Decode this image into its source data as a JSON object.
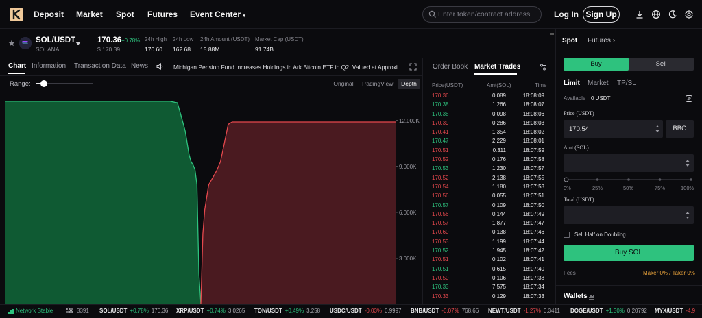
{
  "nav": {
    "links": [
      "Deposit",
      "Market",
      "Spot",
      "Futures",
      "Event Center"
    ],
    "search_placeholder": "Enter token/contract address",
    "login": "Log In",
    "signup": "Sign Up"
  },
  "ticker": {
    "pair": "SOL/USDT",
    "name": "SOLANA",
    "price": "170.36",
    "change": "+0.78%",
    "price_usd": "$ 170.39",
    "stats": [
      {
        "label": "24h High",
        "value": "170.60"
      },
      {
        "label": "24h Low",
        "value": "162.68"
      },
      {
        "label": "24h Amount (USDT)",
        "value": "15.88M"
      },
      {
        "label": "Market Cap (USDT)",
        "value": "91.74B"
      }
    ]
  },
  "chart_panel": {
    "tabs": [
      "Chart",
      "Information",
      "Transaction Data",
      "News"
    ],
    "news_headline": "Michigan Pension Fund Increases Holdings in Ark Bitcoin ETF in Q2, Valued at Approxi...",
    "range_label": "Range:",
    "range_value": 0.14,
    "views": [
      "Original",
      "TradingView",
      "Depth"
    ],
    "active_view": "Depth"
  },
  "chart_data": {
    "type": "area",
    "title": "",
    "x_min": 0,
    "x_max": 1,
    "ylim": [
      0,
      13600
    ],
    "y_ticks": [
      "3.000K",
      "6.000K",
      "9.000K",
      "12.000K"
    ],
    "y_tick_values": [
      3000,
      6000,
      9000,
      12000
    ],
    "grid": false,
    "series": [
      {
        "side": "bids",
        "color": "#2ec27e",
        "fill": "#0f5a33",
        "x": [
          0.0,
          0.42,
          0.44,
          0.45,
          0.46,
          0.47,
          0.475,
          0.48,
          0.485,
          0.49,
          0.495,
          0.5
        ],
        "y": [
          13250,
          13250,
          13150,
          12250,
          11300,
          9750,
          9300,
          9100,
          8800,
          7800,
          2000,
          0
        ]
      },
      {
        "side": "asks",
        "color": "#e5484d",
        "fill": "#4a1a20",
        "x": [
          0.5,
          0.505,
          0.51,
          0.52,
          0.54,
          0.55,
          0.56,
          0.57,
          0.58,
          1.0
        ],
        "y": [
          0,
          4600,
          6200,
          7800,
          8700,
          9300,
          10500,
          11750,
          11900,
          11900
        ]
      }
    ]
  },
  "market": {
    "tabs": [
      "Order Book",
      "Market Trades"
    ],
    "headers": [
      "Price(USDT)",
      "Amt(SOL)",
      "Time"
    ],
    "trades": [
      {
        "price": "170.36",
        "amt": "0.089",
        "time": "18:08:09",
        "side": "down"
      },
      {
        "price": "170.38",
        "amt": "1.266",
        "time": "18:08:07",
        "side": "up"
      },
      {
        "price": "170.38",
        "amt": "0.098",
        "time": "18:08:06",
        "side": "up"
      },
      {
        "price": "170.39",
        "amt": "0.286",
        "time": "18:08:03",
        "side": "down"
      },
      {
        "price": "170.41",
        "amt": "1.354",
        "time": "18:08:02",
        "side": "down"
      },
      {
        "price": "170.47",
        "amt": "2.229",
        "time": "18:08:01",
        "side": "up"
      },
      {
        "price": "170.51",
        "amt": "0.311",
        "time": "18:07:59",
        "side": "down"
      },
      {
        "price": "170.52",
        "amt": "0.176",
        "time": "18:07:58",
        "side": "down"
      },
      {
        "price": "170.53",
        "amt": "1.230",
        "time": "18:07:57",
        "side": "up"
      },
      {
        "price": "170.52",
        "amt": "2.138",
        "time": "18:07:55",
        "side": "down"
      },
      {
        "price": "170.54",
        "amt": "1.180",
        "time": "18:07:53",
        "side": "down"
      },
      {
        "price": "170.56",
        "amt": "0.055",
        "time": "18:07:51",
        "side": "down"
      },
      {
        "price": "170.57",
        "amt": "0.109",
        "time": "18:07:50",
        "side": "up"
      },
      {
        "price": "170.56",
        "amt": "0.144",
        "time": "18:07:49",
        "side": "down"
      },
      {
        "price": "170.57",
        "amt": "1.877",
        "time": "18:07:47",
        "side": "down"
      },
      {
        "price": "170.60",
        "amt": "0.138",
        "time": "18:07:46",
        "side": "down"
      },
      {
        "price": "170.53",
        "amt": "1.199",
        "time": "18:07:44",
        "side": "down"
      },
      {
        "price": "170.52",
        "amt": "1.945",
        "time": "18:07:42",
        "side": "up"
      },
      {
        "price": "170.51",
        "amt": "0.102",
        "time": "18:07:41",
        "side": "down"
      },
      {
        "price": "170.51",
        "amt": "0.615",
        "time": "18:07:40",
        "side": "up"
      },
      {
        "price": "170.50",
        "amt": "0.106",
        "time": "18:07:38",
        "side": "down"
      },
      {
        "price": "170.33",
        "amt": "7.575",
        "time": "18:07:34",
        "side": "up"
      },
      {
        "price": "170.33",
        "amt": "0.129",
        "time": "18:07:33",
        "side": "down"
      }
    ]
  },
  "order_form": {
    "tabs": [
      "Spot",
      "Futures"
    ],
    "buy": "Buy",
    "sell": "Sell",
    "order_types": [
      "Limit",
      "Market",
      "TP/SL"
    ],
    "available_label": "Available",
    "available_value": "0 USDT",
    "price_label": "Price (USDT)",
    "price_value": "170.54",
    "bbo": "BBO",
    "amt_label": "Amt (SOL)",
    "percents": [
      "0%",
      "25%",
      "50%",
      "75%",
      "100%"
    ],
    "total_label": "Total (USDT)",
    "sell_half": "Sell Half on Doubling",
    "buy_button": "Buy SOL",
    "fees_label": "Fees",
    "fees_value": "Maker 0% / Taker 0%",
    "wallets": "Wallets"
  },
  "bottom": {
    "network": "Network Stable",
    "online": "3391",
    "tickers": [
      {
        "symbol": "SOL/USDT",
        "change": "+0.78%",
        "price": "170.36",
        "dir": "up"
      },
      {
        "symbol": "XRP/USDT",
        "change": "+0.74%",
        "price": "3.0265",
        "dir": "up"
      },
      {
        "symbol": "TON/USDT",
        "change": "+0.49%",
        "price": "3.258",
        "dir": "up"
      },
      {
        "symbol": "USDC/USDT",
        "change": "-0.03%",
        "price": "0.9997",
        "dir": "down"
      },
      {
        "symbol": "BNB/USDT",
        "change": "-0.07%",
        "price": "768.66",
        "dir": "down"
      },
      {
        "symbol": "NEWT/USDT",
        "change": "-1.27%",
        "price": "0.3411",
        "dir": "down"
      },
      {
        "symbol": "DOGE/USDT",
        "change": "+1.30%",
        "price": "0.20792",
        "dir": "up"
      },
      {
        "symbol": "MYX/USDT",
        "change": "-4.9",
        "price": "",
        "dir": "down"
      }
    ]
  },
  "colors": {
    "accent": "#2ec27e",
    "down": "#e5484d",
    "background": "#0b0b0e",
    "fees": "#e8a23b"
  }
}
